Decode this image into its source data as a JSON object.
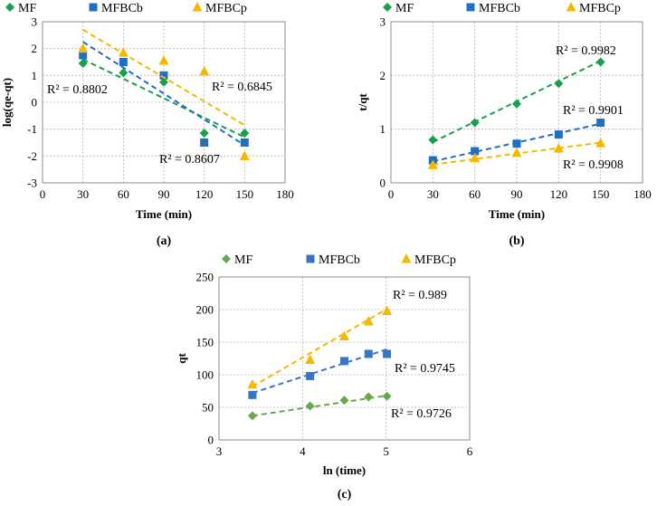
{
  "colors": {
    "MF": "#1aa04a",
    "MFBCb": "#1f6fc5",
    "MFBCp": "#f5b800",
    "MF_c": "#6aa84f",
    "MFBCb_c": "#3a74c4"
  },
  "chart_data": [
    {
      "type": "scatter",
      "panel_label": "(a)",
      "xlabel": "Time (min)",
      "ylabel": "log(qe-qt)",
      "xlim": [
        0,
        180
      ],
      "ylim": [
        -3,
        3
      ],
      "xticks": [
        0,
        30,
        60,
        90,
        120,
        150,
        180
      ],
      "yticks": [
        -3,
        -2,
        -1,
        0,
        1,
        2,
        3
      ],
      "series": [
        {
          "name": "MF",
          "marker": "diamond",
          "x": [
            30,
            60,
            90,
            120,
            150
          ],
          "y": [
            1.45,
            1.1,
            0.75,
            -1.15,
            -1.15
          ],
          "fit": [
            1.6,
            -1.3
          ],
          "r2": "R² = 0.8802"
        },
        {
          "name": "MFBCb",
          "marker": "square",
          "x": [
            30,
            60,
            90,
            120,
            150
          ],
          "y": [
            1.75,
            1.5,
            1.0,
            -1.5,
            -1.5
          ],
          "fit": [
            2.25,
            -1.6
          ],
          "r2": "R² = 0.8607"
        },
        {
          "name": "MFBCp",
          "marker": "triangle",
          "x": [
            30,
            60,
            90,
            120,
            150
          ],
          "y": [
            2.0,
            1.85,
            1.55,
            1.15,
            -2.0
          ],
          "fit": [
            2.7,
            -0.85
          ],
          "r2": "R² = 0.6845"
        }
      ]
    },
    {
      "type": "scatter",
      "panel_label": "(b)",
      "xlabel": "Time (min)",
      "ylabel": "t/qt",
      "xlim": [
        0,
        180
      ],
      "ylim": [
        0,
        3
      ],
      "xticks": [
        0,
        30,
        60,
        90,
        120,
        150,
        180
      ],
      "yticks": [
        0,
        1,
        2,
        3
      ],
      "series": [
        {
          "name": "MF",
          "marker": "diamond",
          "x": [
            30,
            60,
            90,
            120,
            150
          ],
          "y": [
            0.8,
            1.12,
            1.47,
            1.85,
            2.25
          ],
          "fit": [
            0.76,
            2.27
          ],
          "r2": "R² = 0.9982"
        },
        {
          "name": "MFBCb",
          "marker": "square",
          "x": [
            30,
            60,
            90,
            120,
            150
          ],
          "y": [
            0.42,
            0.59,
            0.73,
            0.9,
            1.12
          ],
          "fit": [
            0.4,
            1.1
          ],
          "r2": "R² = 0.9901"
        },
        {
          "name": "MFBCp",
          "marker": "triangle",
          "x": [
            30,
            60,
            90,
            120,
            150
          ],
          "y": [
            0.33,
            0.46,
            0.56,
            0.64,
            0.74
          ],
          "fit": [
            0.34,
            0.75
          ],
          "r2": "R² = 0.9908"
        }
      ]
    },
    {
      "type": "scatter",
      "panel_label": "(c)",
      "xlabel": "ln (time)",
      "ylabel": "qt",
      "xlim": [
        3,
        6
      ],
      "ylim": [
        0,
        250
      ],
      "xticks": [
        3,
        4,
        5,
        6
      ],
      "yticks": [
        0,
        50,
        100,
        150,
        200,
        250
      ],
      "series": [
        {
          "name": "MF",
          "marker": "diamond",
          "x": [
            3.4,
            4.09,
            4.5,
            4.79,
            5.01
          ],
          "y": [
            37,
            52,
            61,
            66,
            67
          ],
          "fit": [
            37,
            68
          ],
          "r2": "R² = 0.9726"
        },
        {
          "name": "MFBCb",
          "marker": "square",
          "x": [
            3.4,
            4.09,
            4.5,
            4.79,
            5.01
          ],
          "y": [
            69,
            98,
            121,
            132,
            132
          ],
          "fit": [
            72,
            139
          ],
          "r2": "R² = 0.9745"
        },
        {
          "name": "MFBCp",
          "marker": "triangle",
          "x": [
            3.4,
            4.09,
            4.5,
            4.79,
            5.01
          ],
          "y": [
            85,
            123,
            159,
            182,
            198
          ],
          "fit": [
            82,
            201
          ],
          "r2": "R² = 0.989"
        }
      ]
    }
  ]
}
